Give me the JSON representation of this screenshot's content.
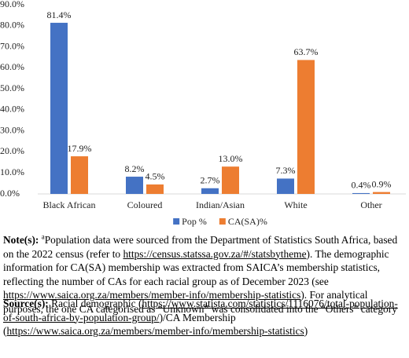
{
  "chart_data": {
    "type": "bar",
    "categories": [
      "Black African",
      "Coloured",
      "Indian/Asian",
      "White",
      "Other"
    ],
    "series": [
      {
        "name": "Pop %",
        "color": "#4472c4",
        "values": [
          81.4,
          8.2,
          2.7,
          7.3,
          0.4
        ],
        "value_labels": [
          "81.4%",
          "8.2%",
          "2.7%",
          "7.3%",
          "0.4%"
        ]
      },
      {
        "name": "CA(SA)%",
        "color": "#ed7d31",
        "values": [
          17.9,
          4.5,
          13.0,
          63.7,
          0.9
        ],
        "value_labels": [
          "17.9%",
          "4.5%",
          "13.0%",
          "63.7%",
          "0.9%"
        ]
      }
    ],
    "ylim": [
      0,
      90
    ],
    "yticks": [
      {
        "value": 0,
        "label": "0.0%"
      },
      {
        "value": 10,
        "label": "10.0%"
      },
      {
        "value": 20,
        "label": "20.0%"
      },
      {
        "value": 30,
        "label": "30.0%"
      },
      {
        "value": 40,
        "label": "40.0%"
      },
      {
        "value": 50,
        "label": "50.0%"
      },
      {
        "value": 60,
        "label": "60.0%"
      },
      {
        "value": 70,
        "label": "70.0%"
      },
      {
        "value": 80,
        "label": "80.0%"
      },
      {
        "value": 90,
        "label": "90.0%"
      }
    ],
    "grid": false,
    "legend": "bottom"
  },
  "notes": {
    "label": "Note(s):",
    "marker": "a",
    "parts": [
      "Population data were sourced from the Department of Statistics South Africa, based on the 2022 census (refer to ",
      "https://census.statssa.gov.za/#/statsbytheme",
      "). The demographic information for CA(SA) membership was extracted from SAICA’s membership statistics, reflecting the number of CAs for each racial group as of December 2023 (see ",
      "https://www.saica.org.za/members/member-info/membership-statistics",
      "). For analytical purposes, the one CA categorised as “Unknown” was consolidated into the “Others” category"
    ]
  },
  "sources": {
    "label": "Source(s):",
    "parts": [
      "Racial demographic (",
      "https://www.statista.com/statistics/1116076/total-population-of-south-africa-by-population-group/",
      ")/CA Membership (",
      "https://www.saica.org.za/members/member-info/membership-statistics",
      ")"
    ]
  }
}
